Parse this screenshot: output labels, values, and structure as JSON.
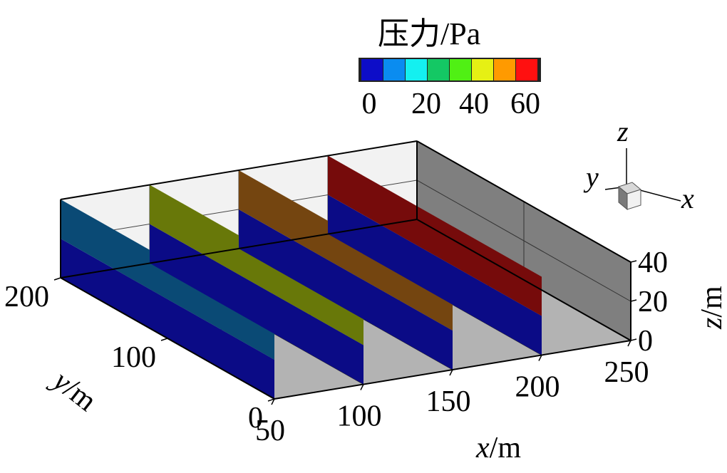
{
  "chart_data": {
    "type": "3d-slices",
    "legend": {
      "title": "压力/Pa",
      "ticks": [
        "0",
        "20",
        "40",
        "60"
      ],
      "colors": [
        "#0d0dc8",
        "#0a8cf0",
        "#14f0f0",
        "#14c864",
        "#50f014",
        "#e6f014",
        "#ff9a00",
        "#ff1010"
      ]
    },
    "axes": {
      "x": {
        "label_var": "x",
        "label_unit": "/m",
        "ticks": [
          "50",
          "100",
          "150",
          "200",
          "250"
        ]
      },
      "y": {
        "label_var": "y",
        "label_unit": "/m",
        "ticks": [
          "0",
          "100",
          "200"
        ]
      },
      "z": {
        "label_var": "z",
        "label_unit": "/m",
        "ticks": [
          "0",
          "20",
          "40"
        ]
      }
    },
    "triad": {
      "x": "x",
      "y": "y",
      "z": "z"
    },
    "slices": [
      {
        "x": 50,
        "upper_color": "#0a4a75",
        "lower_color": "#0b0b86"
      },
      {
        "x": 100,
        "upper_color": "#687809",
        "lower_color": "#0b0b86"
      },
      {
        "x": 150,
        "upper_color": "#744510",
        "lower_color": "#0b0b86"
      },
      {
        "x": 200,
        "upper_color": "#760b0b",
        "lower_color": "#0b0b86"
      }
    ]
  }
}
